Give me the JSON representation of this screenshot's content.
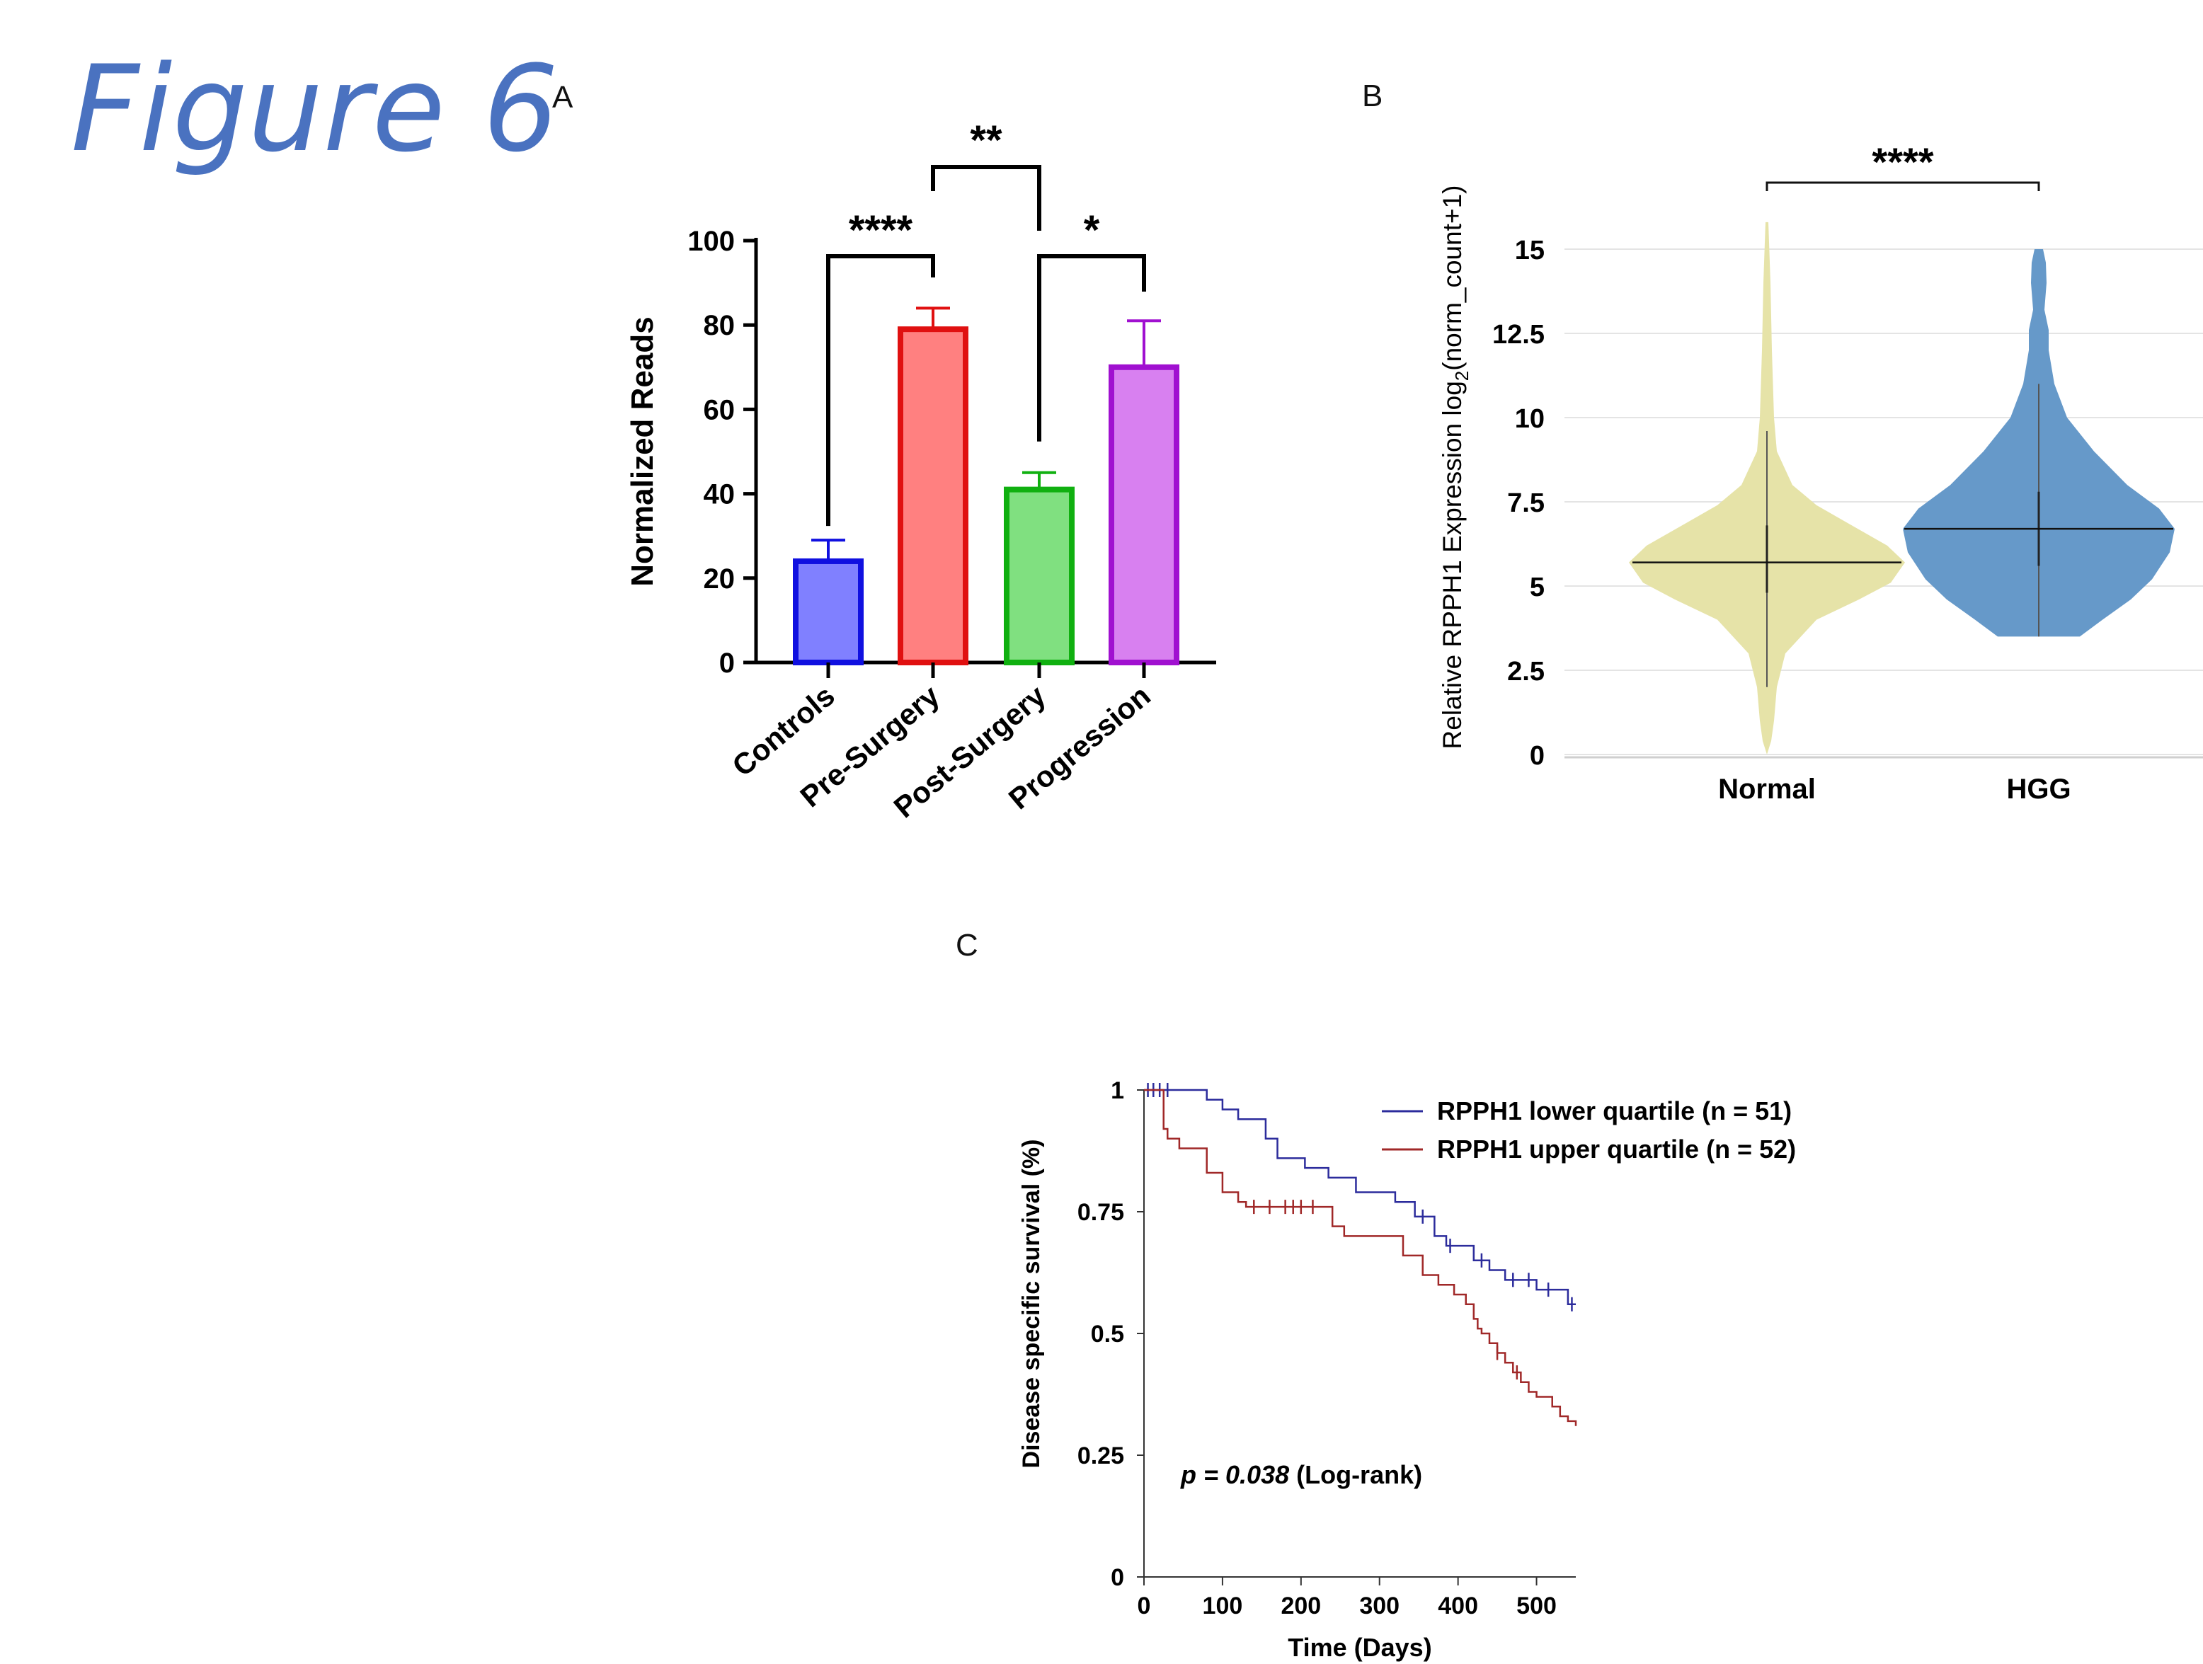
{
  "figure_title": "Figure 6",
  "panels": {
    "a": {
      "letter": "A"
    },
    "b": {
      "letter": "B"
    },
    "c": {
      "letter": "C"
    }
  },
  "chart_data": [
    {
      "panel": "A",
      "type": "bar",
      "ylabel": "Normalized Reads",
      "xlabel": "",
      "ylim": [
        0,
        100
      ],
      "yticks": [
        0,
        20,
        40,
        60,
        80,
        100
      ],
      "categories": [
        "Controls",
        "Pre-Surgery",
        "Post-Surgery",
        "Progression"
      ],
      "values": [
        24,
        79,
        41,
        70
      ],
      "error_upper": [
        29,
        84,
        45,
        81
      ],
      "colors": {
        "fill": [
          "#8080ff",
          "#ff8080",
          "#80e080",
          "#d880f0"
        ],
        "edge": [
          "#1010e0",
          "#e01010",
          "#10b010",
          "#a010d0"
        ]
      },
      "significance": [
        {
          "from": "Controls",
          "to": "Pre-Surgery",
          "label": "****"
        },
        {
          "from": "Pre-Surgery",
          "to": "Post-Surgery",
          "label": "**"
        },
        {
          "from": "Post-Surgery",
          "to": "Progression",
          "label": "*"
        }
      ],
      "grid": false
    },
    {
      "panel": "B",
      "type": "violin",
      "ylabel_main": "Relative RPPH1 Expression log",
      "ylabel_sub": "2",
      "ylabel_tail": "(norm_count+1)",
      "xlabel": "",
      "ylim": [
        0,
        15
      ],
      "ytick_labels": [
        "0",
        "2.5",
        "5",
        "7.5",
        "10",
        "12.5",
        "15"
      ],
      "yticks": [
        0,
        2.5,
        5,
        7.5,
        10,
        12.5,
        15
      ],
      "categories": [
        "Normal",
        "HGG"
      ],
      "median": [
        5.7,
        6.7
      ],
      "iqr": [
        [
          4.8,
          6.8
        ],
        [
          5.6,
          7.8
        ]
      ],
      "whisker": [
        [
          2.0,
          9.6
        ],
        [
          3.5,
          11.0
        ]
      ],
      "range": [
        [
          0,
          15.8
        ],
        [
          3.5,
          15.0
        ]
      ],
      "colors": [
        "#e6e3a8",
        "#6699c9"
      ],
      "significance": [
        {
          "from": "Normal",
          "to": "HGG",
          "label": "****"
        }
      ],
      "grid": true
    },
    {
      "panel": "C",
      "type": "line",
      "ylabel": "Disease specific survival (%)",
      "xlabel": "Time (Days)",
      "xlim": [
        0,
        550
      ],
      "ylim": [
        0,
        1
      ],
      "xticks": [
        0,
        100,
        200,
        300,
        400,
        500
      ],
      "yticks": [
        0,
        0.25,
        0.5,
        0.75,
        1
      ],
      "ytick_labels": [
        "0",
        "0.25",
        "0.5",
        "0.75",
        "1"
      ],
      "legend_position": "top-right",
      "annotation": {
        "p": "p = 0.038",
        "test": " (Log-rank)"
      },
      "series": [
        {
          "name": "RPPH1 lower quartile (n = 51)",
          "color": "#2c2c9c",
          "x": [
            0,
            80,
            100,
            120,
            155,
            170,
            205,
            235,
            270,
            320,
            345,
            370,
            385,
            420,
            440,
            460,
            500,
            540,
            550
          ],
          "y": [
            1.0,
            0.98,
            0.96,
            0.94,
            0.9,
            0.86,
            0.84,
            0.82,
            0.79,
            0.77,
            0.74,
            0.7,
            0.68,
            0.65,
            0.63,
            0.61,
            0.59,
            0.56,
            0.56
          ],
          "censored_x": [
            5,
            12,
            20,
            30,
            355,
            390,
            430,
            470,
            490,
            515,
            545
          ]
        },
        {
          "name": "RPPH1 upper quartile (n = 52)",
          "color": "#a02828",
          "x": [
            0,
            25,
            30,
            45,
            80,
            100,
            120,
            130,
            240,
            255,
            330,
            355,
            375,
            395,
            410,
            420,
            425,
            430,
            440,
            450,
            460,
            470,
            480,
            490,
            500,
            520,
            530,
            540,
            550
          ],
          "y": [
            1.0,
            0.92,
            0.9,
            0.88,
            0.83,
            0.79,
            0.77,
            0.76,
            0.72,
            0.7,
            0.66,
            0.62,
            0.6,
            0.58,
            0.56,
            0.53,
            0.51,
            0.5,
            0.48,
            0.46,
            0.44,
            0.42,
            0.4,
            0.38,
            0.37,
            0.35,
            0.33,
            0.32,
            0.31
          ],
          "censored_x": [
            140,
            160,
            180,
            190,
            200,
            215,
            450,
            475
          ]
        }
      ],
      "grid": false
    }
  ]
}
